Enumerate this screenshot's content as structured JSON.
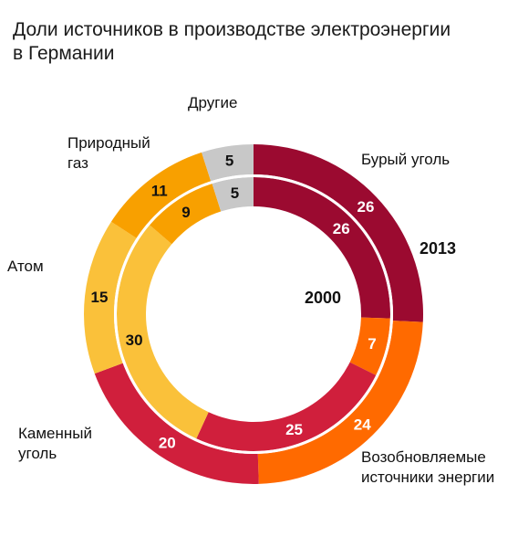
{
  "title_line1": "Доли источников в производстве электроэнергии",
  "title_line2": "в Германии",
  "chart_data": {
    "type": "pie",
    "subtype": "double-donut",
    "title": "Доли источников в производстве электроэнергии в Германии",
    "categories": [
      "Бурый уголь",
      "Возобновляемые источники энергии",
      "Каменный уголь",
      "Атом",
      "Природный газ",
      "Другие"
    ],
    "series": [
      {
        "name": "2013",
        "ring": "outer",
        "values": [
          26,
          24,
          20,
          15,
          11,
          5
        ]
      },
      {
        "name": "2000",
        "ring": "inner",
        "values": [
          26,
          7,
          25,
          30,
          9,
          5
        ]
      }
    ],
    "colors": [
      "#9b0a30",
      "#ff6a00",
      "#d01f3c",
      "#fac13a",
      "#f8a000",
      "#c8c8c8"
    ],
    "label_colors": [
      "#ffffff",
      "#ffffff",
      "#ffffff",
      "#111111",
      "#111111",
      "#111111"
    ]
  },
  "labels": {
    "cat0": "Бурый уголь",
    "cat1_line1": "Возобновляемые",
    "cat1_line2": "источники энергии",
    "cat2_line1": "Каменный",
    "cat2_line2": "уголь",
    "cat3": "Атом",
    "cat4_line1": "Природный",
    "cat4_line2": "газ",
    "cat5": "Другие"
  }
}
